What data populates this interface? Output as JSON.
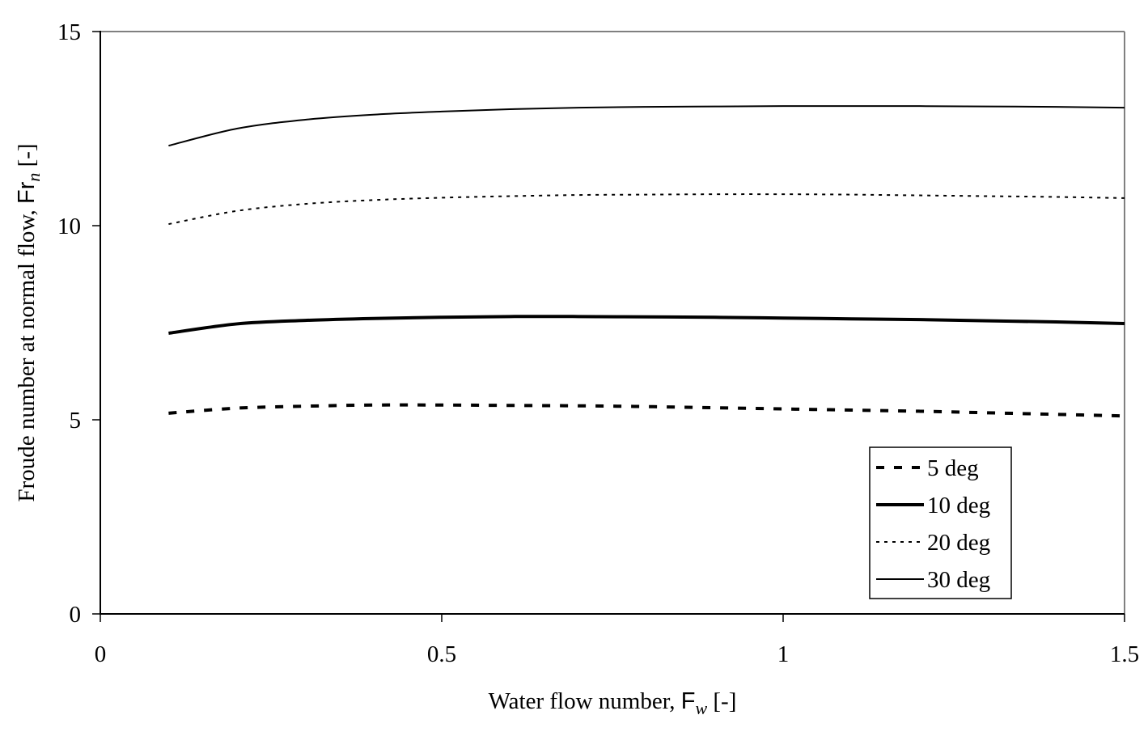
{
  "chart_data": {
    "type": "line",
    "title": "",
    "xlabel": "Water flow number, F_w [-]",
    "ylabel": "Froude number at normal flow, Fr_n [-]",
    "xlabel_parts": {
      "text": "Water flow number, ",
      "symbol": "F",
      "subscript": "w",
      "unit": " [-]"
    },
    "ylabel_parts": {
      "text": "Froude number at normal flow, ",
      "symbol": "Fr",
      "subscript": "n",
      "unit": " [-]"
    },
    "xlim": [
      0,
      1.5
    ],
    "ylim": [
      0,
      15
    ],
    "xticks": [
      0,
      0.5,
      1,
      1.5
    ],
    "xtick_labels": [
      "0",
      "0.5",
      "1",
      "1.5"
    ],
    "yticks": [
      0,
      5,
      10,
      15
    ],
    "ytick_labels": [
      "0",
      "5",
      "10",
      "15"
    ],
    "grid": false,
    "legend_position": "lower right (inside plot)",
    "x": [
      0.1,
      0.2,
      0.3,
      0.4,
      0.5,
      0.6,
      0.7,
      0.8,
      0.9,
      1.0,
      1.1,
      1.2,
      1.3,
      1.4,
      1.5
    ],
    "series": [
      {
        "name": "5 deg",
        "style": "dashed-thick",
        "values": [
          5.17,
          5.3,
          5.35,
          5.38,
          5.38,
          5.37,
          5.36,
          5.34,
          5.31,
          5.28,
          5.25,
          5.22,
          5.18,
          5.14,
          5.1
        ]
      },
      {
        "name": "10 deg",
        "style": "solid-thick",
        "values": [
          7.23,
          7.47,
          7.56,
          7.61,
          7.64,
          7.66,
          7.66,
          7.65,
          7.64,
          7.62,
          7.6,
          7.58,
          7.55,
          7.52,
          7.48
        ]
      },
      {
        "name": "20 deg",
        "style": "dotted-thin",
        "values": [
          10.04,
          10.38,
          10.56,
          10.66,
          10.72,
          10.76,
          10.79,
          10.8,
          10.81,
          10.81,
          10.8,
          10.78,
          10.76,
          10.74,
          10.71
        ]
      },
      {
        "name": "30 deg",
        "style": "solid-thin",
        "values": [
          12.06,
          12.5,
          12.73,
          12.86,
          12.94,
          13.0,
          13.04,
          13.06,
          13.07,
          13.08,
          13.08,
          13.08,
          13.07,
          13.06,
          13.04
        ]
      }
    ]
  },
  "colors": {
    "line": "#000000",
    "frame_top_right": "#808080",
    "axis": "#000000",
    "background": "#ffffff"
  }
}
